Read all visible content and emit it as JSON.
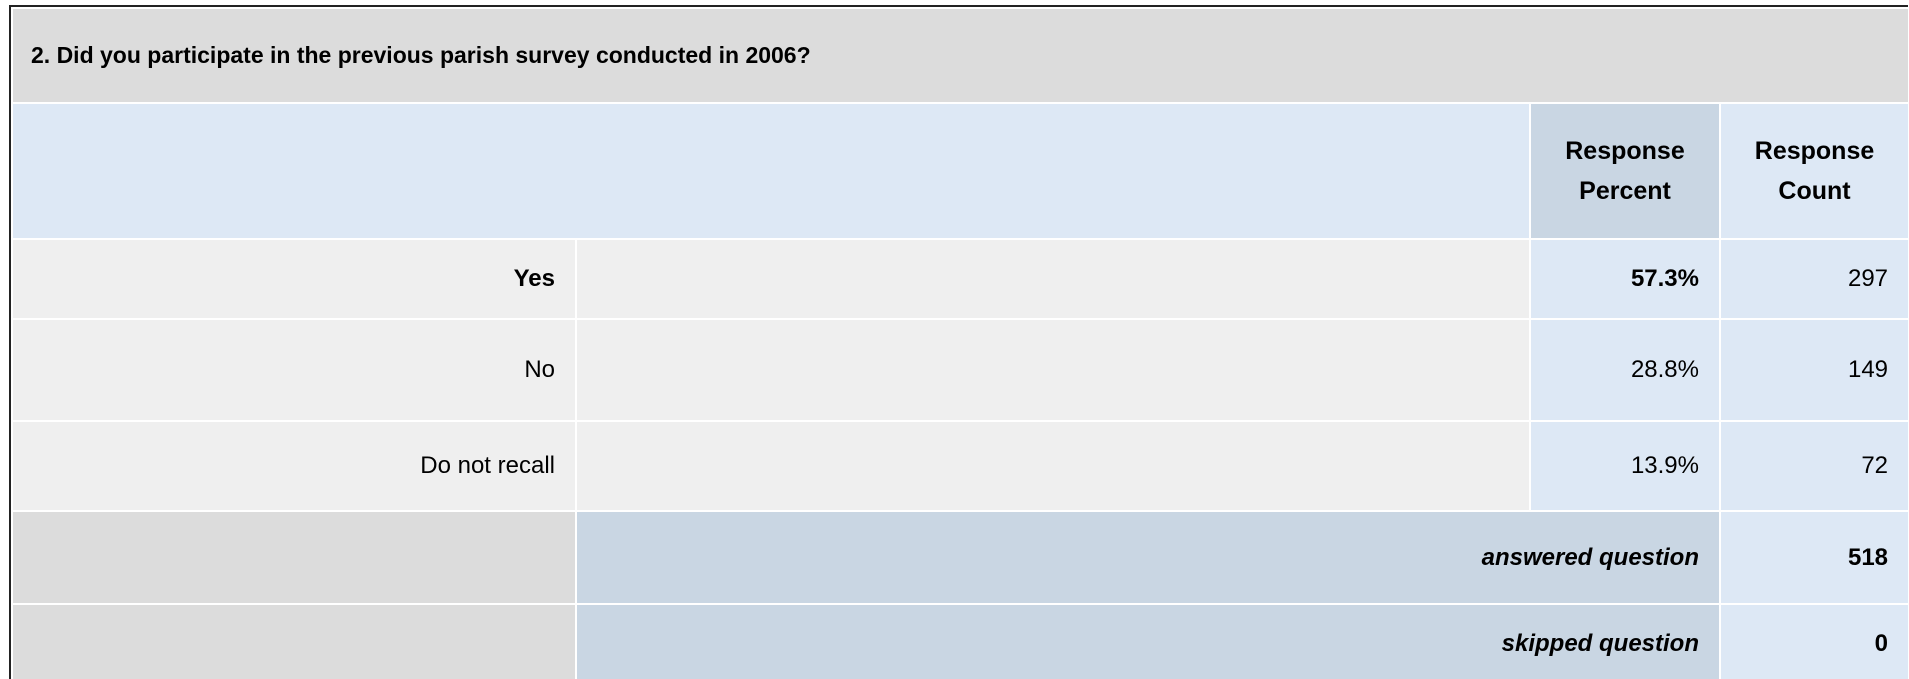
{
  "title": "2. Did you participate in the previous parish survey conducted in 2006?",
  "header": {
    "percent": "Response Percent",
    "count": "Response Count"
  },
  "rows": [
    {
      "label": "Yes",
      "percent": 57.3,
      "percent_label": "57.3%",
      "count": 297
    },
    {
      "label": "No",
      "percent": 28.8,
      "percent_label": "28.8%",
      "count": 149
    },
    {
      "label": "Do not recall",
      "percent": 13.9,
      "percent_label": "13.9%",
      "count": 72
    }
  ],
  "summary": [
    {
      "label": "answered question",
      "value": 518
    },
    {
      "label": "skipped question",
      "value": 0
    }
  ]
}
